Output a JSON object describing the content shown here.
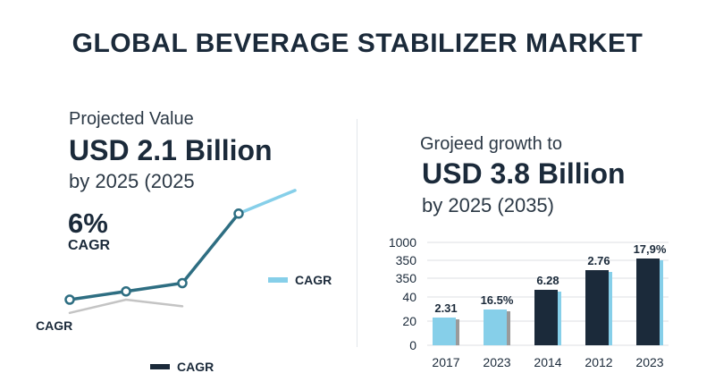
{
  "header": {
    "title": "GLOBAL BEVERAGE STABILIZER MARKET"
  },
  "left_panel": {
    "subtitle": "Projected Value",
    "value": "USD 2.1 Billion",
    "note": "by 2025 (2025",
    "growth_value": "6%",
    "growth_label": "CAGR",
    "line_label": "CAGR",
    "legend_light": "CAGR",
    "legend_dark": "CAGR"
  },
  "right_panel": {
    "subtitle": "Grojeed growth to",
    "value": "USD 3.8 Billion",
    "note": "by 2025 (2035)"
  },
  "colors": {
    "navy": "#1b2a3a",
    "teal_line": "#2e6e82",
    "light_blue": "#86cfe9",
    "gray_line": "#c4c4c4",
    "bar_shadow": "#9a9a9a"
  },
  "chart_data": [
    {
      "type": "line",
      "title": "",
      "series": [
        {
          "name": "",
          "color": "#2e6e82",
          "x": [
            0,
            1,
            2,
            3,
            4,
            5
          ],
          "values": [
            1.0,
            1.25,
            1.5,
            3.6,
            null,
            null
          ]
        },
        {
          "name": "",
          "color": "#86cfe9",
          "x": [
            0,
            1,
            2,
            3,
            4,
            5
          ],
          "values": [
            null,
            null,
            null,
            3.6,
            4.3,
            null
          ]
        },
        {
          "name": "",
          "color": "#c4c4c4",
          "x": [
            0,
            1,
            2,
            3,
            4,
            5
          ],
          "values": [
            0.6,
            1.0,
            0.8,
            null,
            null,
            null
          ]
        }
      ],
      "markers": [
        0,
        1,
        2,
        3
      ],
      "grid": false
    },
    {
      "type": "bar",
      "categories": [
        "2017",
        "2023",
        "2014",
        "2012",
        "2023"
      ],
      "values": [
        2.31,
        16.5,
        6.28,
        2.76,
        17.9
      ],
      "data_labels": [
        "2.31",
        "16.5%",
        "6.28",
        "2.76",
        "17,9%"
      ],
      "bar_colors": [
        "#86cfe9",
        "#86cfe9",
        "#1b2a3a",
        "#1b2a3a",
        "#1b2a3a"
      ],
      "accent_colors": [
        "#9a9a9a",
        "#9a9a9a",
        "#86cfe9",
        "#86cfe9",
        "#86cfe9"
      ],
      "y_ticks": [
        "1000",
        "350",
        "350",
        "40",
        "20",
        "0"
      ],
      "grid": true
    }
  ]
}
